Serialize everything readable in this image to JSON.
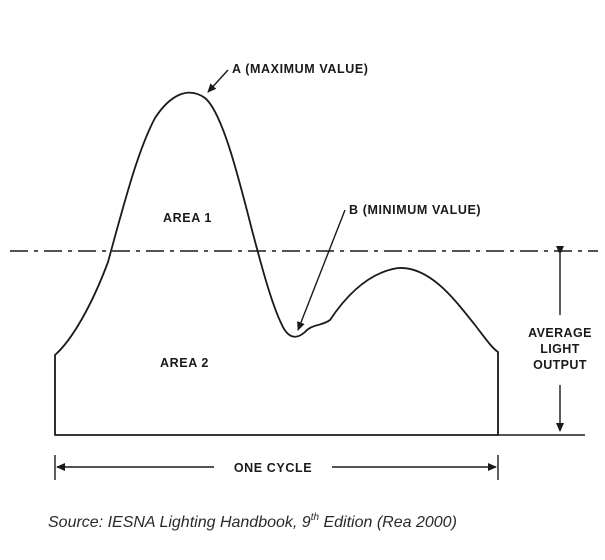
{
  "labels": {
    "max": "A (MAXIMUM VALUE)",
    "min": "B (MINIMUM VALUE)",
    "area1": "AREA 1",
    "area2": "AREA 2",
    "avg_line1": "AVERAGE",
    "avg_line2": "LIGHT",
    "avg_line3": "OUTPUT",
    "cycle": "ONE CYCLE"
  },
  "caption": {
    "prefix": "Source:  IESNA Lighting Handbook, 9",
    "sup": "th",
    "suffix": " Edition (Rea 2000)"
  }
}
